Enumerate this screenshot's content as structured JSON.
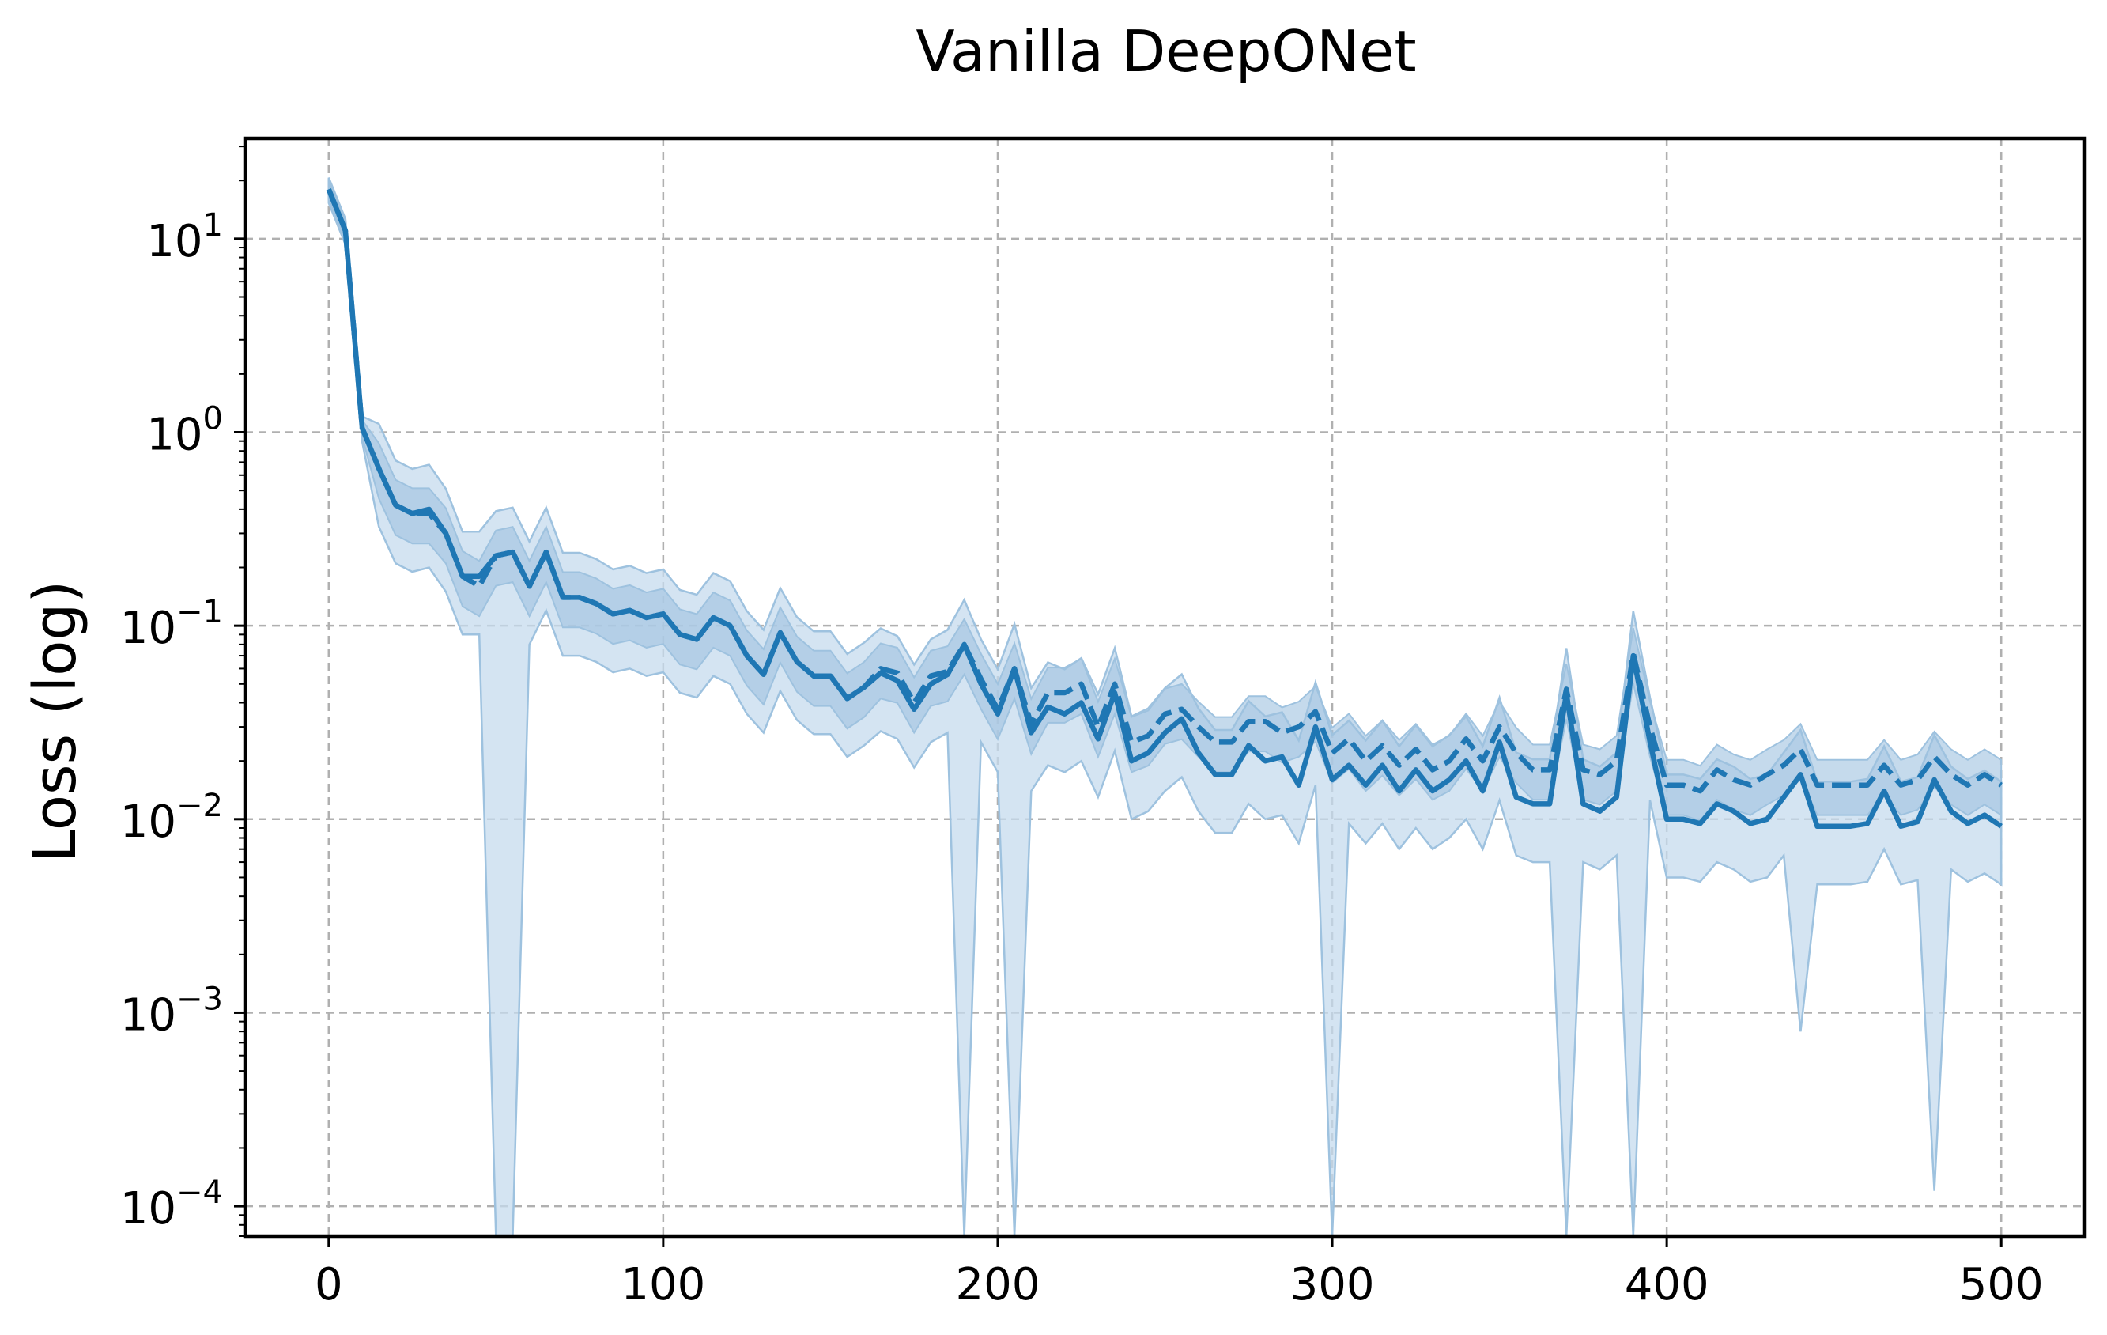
{
  "chart_data": {
    "type": "line",
    "title": "Vanilla DeepONet",
    "xlabel": "",
    "ylabel": "Loss (log)",
    "xlim": [
      -25,
      525
    ],
    "ylim": [
      7e-05,
      33
    ],
    "yscale": "log",
    "grid": true,
    "xticks": [
      0,
      100,
      200,
      300,
      400,
      500
    ],
    "xtick_labels": [
      "0",
      "100",
      "200",
      "300",
      "400",
      "500"
    ],
    "yticks": [
      0.0001,
      0.001,
      0.01,
      0.1,
      1,
      10
    ],
    "ytick_labels": [
      {
        "base": "10",
        "exp": "−4"
      },
      {
        "base": "10",
        "exp": "−3"
      },
      {
        "base": "10",
        "exp": "−2"
      },
      {
        "base": "10",
        "exp": "−1"
      },
      {
        "base": "10",
        "exp": "0"
      },
      {
        "base": "10",
        "exp": "1"
      }
    ],
    "colors": {
      "line": "#1f77b4",
      "band_dark": "#9ec2df",
      "band_light": "#c6dbee"
    },
    "x": [
      0,
      5,
      10,
      15,
      20,
      25,
      30,
      35,
      40,
      45,
      50,
      55,
      60,
      65,
      70,
      75,
      80,
      85,
      90,
      95,
      100,
      105,
      110,
      115,
      120,
      125,
      130,
      135,
      140,
      145,
      150,
      155,
      160,
      165,
      170,
      175,
      180,
      185,
      190,
      195,
      200,
      205,
      210,
      215,
      220,
      225,
      230,
      235,
      240,
      245,
      250,
      255,
      260,
      265,
      270,
      275,
      280,
      285,
      290,
      295,
      300,
      305,
      310,
      315,
      320,
      325,
      330,
      335,
      340,
      345,
      350,
      355,
      360,
      365,
      370,
      375,
      380,
      385,
      390,
      395,
      400,
      405,
      410,
      415,
      420,
      425,
      430,
      435,
      440,
      445,
      450,
      455,
      460,
      465,
      470,
      475,
      480,
      485,
      490,
      495,
      500
    ],
    "series": [
      {
        "style": "solid",
        "values": [
          18,
          11,
          1.05,
          0.65,
          0.42,
          0.38,
          0.4,
          0.3,
          0.18,
          0.18,
          0.23,
          0.24,
          0.16,
          0.24,
          0.14,
          0.14,
          0.13,
          0.115,
          0.12,
          0.11,
          0.115,
          0.09,
          0.085,
          0.11,
          0.1,
          0.07,
          0.056,
          0.092,
          0.065,
          0.055,
          0.055,
          0.042,
          0.048,
          0.057,
          0.052,
          0.037,
          0.05,
          0.056,
          0.08,
          0.05,
          0.035,
          0.06,
          0.028,
          0.038,
          0.035,
          0.04,
          0.026,
          0.045,
          0.02,
          0.022,
          0.028,
          0.033,
          0.022,
          0.017,
          0.017,
          0.024,
          0.02,
          0.021,
          0.015,
          0.03,
          0.016,
          0.019,
          0.015,
          0.019,
          0.014,
          0.018,
          0.014,
          0.016,
          0.02,
          0.014,
          0.025,
          0.013,
          0.012,
          0.012,
          0.045,
          0.012,
          0.011,
          0.013,
          0.07,
          0.025,
          0.01,
          0.01,
          0.0095,
          0.012,
          0.011,
          0.0095,
          0.01,
          0.013,
          0.017,
          0.0092,
          0.0092,
          0.0092,
          0.0095,
          0.014,
          0.0092,
          0.0097,
          0.016,
          0.011,
          0.0095,
          0.0105,
          0.0092
        ]
      },
      {
        "style": "dashed",
        "values": [
          18,
          11,
          1.05,
          0.65,
          0.42,
          0.38,
          0.38,
          0.3,
          0.18,
          0.16,
          0.23,
          0.24,
          0.16,
          0.24,
          0.14,
          0.14,
          0.13,
          0.115,
          0.12,
          0.11,
          0.115,
          0.09,
          0.085,
          0.11,
          0.1,
          0.07,
          0.056,
          0.092,
          0.065,
          0.055,
          0.055,
          0.042,
          0.048,
          0.06,
          0.057,
          0.04,
          0.055,
          0.058,
          0.08,
          0.053,
          0.037,
          0.06,
          0.031,
          0.045,
          0.045,
          0.05,
          0.03,
          0.05,
          0.025,
          0.027,
          0.035,
          0.037,
          0.03,
          0.025,
          0.025,
          0.032,
          0.032,
          0.028,
          0.03,
          0.036,
          0.022,
          0.026,
          0.02,
          0.024,
          0.019,
          0.023,
          0.018,
          0.02,
          0.026,
          0.02,
          0.03,
          0.022,
          0.018,
          0.018,
          0.047,
          0.018,
          0.017,
          0.02,
          0.072,
          0.03,
          0.015,
          0.015,
          0.014,
          0.018,
          0.016,
          0.015,
          0.017,
          0.019,
          0.023,
          0.015,
          0.015,
          0.015,
          0.015,
          0.019,
          0.015,
          0.016,
          0.021,
          0.017,
          0.015,
          0.017,
          0.015
        ]
      }
    ]
  }
}
